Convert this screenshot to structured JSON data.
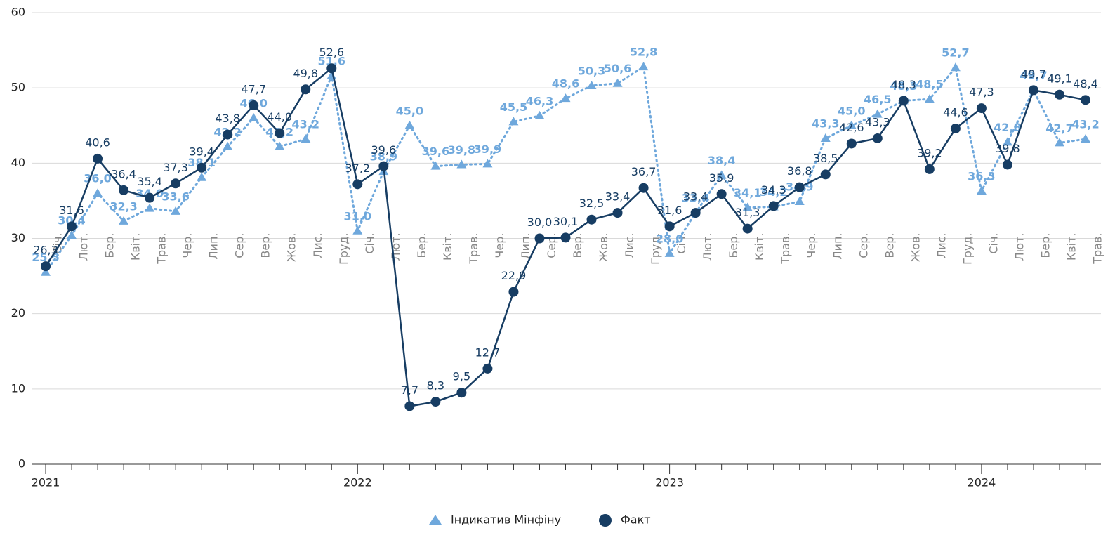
{
  "chart_data": {
    "type": "line",
    "categories": [
      "Січ.",
      "Лют.",
      "Бер.",
      "Квіт.",
      "Трав.",
      "Чер.",
      "Лип.",
      "Сер.",
      "Вер.",
      "Жов.",
      "Лис.",
      "Груд.",
      "Січ.",
      "Лют.",
      "Бер.",
      "Квіт.",
      "Трав.",
      "Чер.",
      "Лип.",
      "Сер.",
      "Вер.",
      "Жов.",
      "Лис.",
      "Груд.",
      "Січ.",
      "Лют.",
      "Бер.",
      "Квіт.",
      "Трав.",
      "Чер.",
      "Лип.",
      "Сер.",
      "Вер.",
      "Жов.",
      "Лис.",
      "Груд.",
      "Січ.",
      "Лют.",
      "Бер.",
      "Квіт.",
      "Трав."
    ],
    "years": [
      "2021",
      "2022",
      "2023",
      "2024"
    ],
    "series": [
      {
        "name": "Індикатив Мінфіну",
        "color": "#6fa8dc",
        "marker": "triangle",
        "dotted": true,
        "values": [
          25.5,
          30.4,
          36.0,
          32.3,
          34.0,
          33.6,
          38.1,
          42.2,
          46.0,
          42.2,
          43.2,
          51.6,
          31.0,
          38.9,
          45.0,
          39.6,
          39.8,
          39.9,
          45.5,
          46.3,
          48.6,
          50.3,
          50.6,
          52.8,
          28.0,
          33.4,
          38.4,
          34.1,
          34.2,
          34.9,
          43.3,
          45.0,
          46.5,
          48.3,
          48.5,
          52.7,
          36.3,
          42.8,
          49.7,
          42.7,
          43.2
        ],
        "value_labels": [
          "25,5",
          "30,4",
          "36,0",
          "32,3",
          "34,0",
          "33,6",
          "38,1",
          "42,2",
          "46,0",
          "42,2",
          "43,2",
          "51,6",
          "31,0",
          "38,9",
          "45,0",
          "39,6",
          "39,8",
          "39,9",
          "45,5",
          "46,3",
          "48,6",
          "50,3",
          "50,6",
          "52,8",
          "28,0",
          "33,4",
          "38,4",
          "34,1",
          "34,2",
          "34,9",
          "43,3",
          "45,0",
          "46,5",
          "48,3",
          "48,5",
          "52,7",
          "36,3",
          "42,8",
          "49,7",
          "42,7",
          "43,2"
        ]
      },
      {
        "name": "Факт",
        "color": "#173d63",
        "marker": "circle",
        "dotted": false,
        "values": [
          26.3,
          31.6,
          40.6,
          36.4,
          35.4,
          37.3,
          39.4,
          43.8,
          47.7,
          44.0,
          49.8,
          52.6,
          37.2,
          39.6,
          7.7,
          8.3,
          9.5,
          12.7,
          22.9,
          30.0,
          30.1,
          32.5,
          33.4,
          36.7,
          31.6,
          33.4,
          35.9,
          31.3,
          34.3,
          36.8,
          38.5,
          42.6,
          43.3,
          48.3,
          39.2,
          44.6,
          47.3,
          39.8,
          49.7,
          49.1,
          48.4
        ],
        "value_labels": [
          "26,3",
          "31,6",
          "40,6",
          "36,4",
          "35,4",
          "37,3",
          "39,4",
          "43,8",
          "47,7",
          "44,0",
          "49,8",
          "52,6",
          "37,2",
          "39,6",
          "7,7",
          "8,3",
          "9,5",
          "12,7",
          "22,9",
          "30,0",
          "30,1",
          "32,5",
          "33,4",
          "36,7",
          "31,6",
          "33,4",
          "35,9",
          "31,3",
          "34,3",
          "36,8",
          "38,5",
          "42,6",
          "43,3",
          "48,3",
          "39,2",
          "44,6",
          "47,3",
          "39,8",
          "49,7",
          "49,1",
          "48,4"
        ]
      }
    ],
    "ylim": [
      0,
      60
    ],
    "yticks": [
      0,
      10,
      20,
      30,
      40,
      50,
      60
    ],
    "grid": true
  }
}
